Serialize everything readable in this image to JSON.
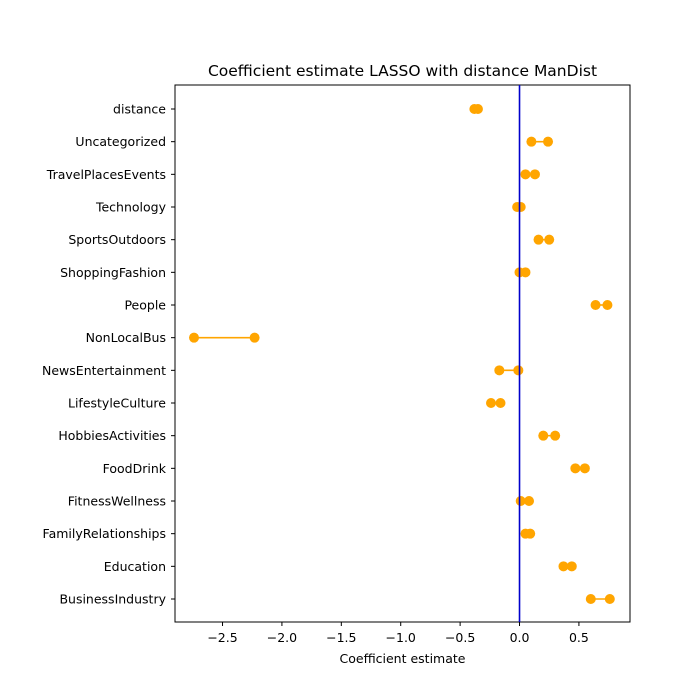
{
  "chart_data": {
    "type": "dot-range",
    "title": "Coefficient estimate LASSO  with distance ManDist",
    "xlabel": "Coefficient estimate",
    "ylabel": "",
    "xlim": [
      -2.9,
      0.93
    ],
    "x_ticks": [
      -2.5,
      -2.0,
      -1.5,
      -1.0,
      -0.5,
      0.0,
      0.5
    ],
    "x_tick_labels": [
      "−2.5",
      "−2.0",
      "−1.5",
      "−1.0",
      "−0.5",
      "0.0",
      "0.5"
    ],
    "reference_line": {
      "x": 0.0,
      "color": "#0000cc"
    },
    "marker_color": "#ffa500",
    "grid": false,
    "categories": [
      "distance",
      "Uncategorized",
      "TravelPlacesEvents",
      "Technology",
      "SportsOutdoors",
      "ShoppingFashion",
      "People",
      "NonLocalBus",
      "NewsEntertainment",
      "LifestyleCulture",
      "HobbiesActivities",
      "FoodDrink",
      "FitnessWellness",
      "FamilyRelationships",
      "Education",
      "BusinessIndustry"
    ],
    "ranges": [
      [
        -0.38,
        -0.35
      ],
      [
        0.1,
        0.24
      ],
      [
        0.05,
        0.13
      ],
      [
        -0.02,
        0.01
      ],
      [
        0.16,
        0.25
      ],
      [
        0.0,
        0.05
      ],
      [
        0.64,
        0.74
      ],
      [
        -2.74,
        -2.23
      ],
      [
        -0.17,
        -0.01
      ],
      [
        -0.24,
        -0.16
      ],
      [
        0.2,
        0.3
      ],
      [
        0.47,
        0.55
      ],
      [
        0.01,
        0.08
      ],
      [
        0.05,
        0.09
      ],
      [
        0.37,
        0.44
      ],
      [
        0.6,
        0.76
      ]
    ]
  }
}
